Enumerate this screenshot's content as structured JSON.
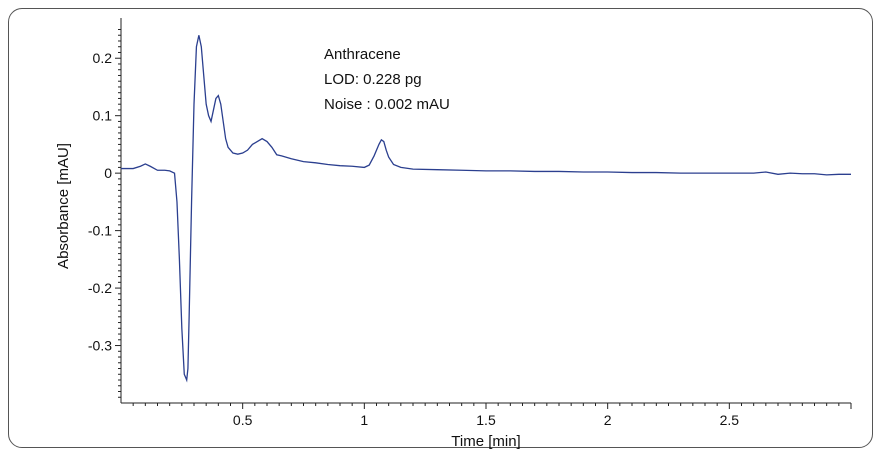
{
  "chart_data": {
    "type": "line",
    "title": "",
    "xlabel": "Time [min]",
    "ylabel": "Absorbance [mAU]",
    "xlim": [
      0,
      3.0
    ],
    "ylim": [
      -0.4,
      0.27
    ],
    "grid": false,
    "x_ticks": [
      0.5,
      1,
      1.5,
      2,
      2.5
    ],
    "x_tick_labels": [
      "0.5",
      "1",
      "1.5",
      "2",
      "2.5"
    ],
    "y_ticks": [
      0.2,
      0.1,
      0,
      -0.1,
      -0.2,
      -0.3
    ],
    "y_tick_labels": [
      "0.2",
      "0.1",
      "0",
      "-0.1",
      "-0.2",
      "-0.3"
    ],
    "annotations": [
      "Anthracene",
      "LOD: 0.228 pg",
      "Noise : 0.002 mAU"
    ],
    "line_color": "#2b3f8f",
    "series": [
      {
        "x": [
          0.0,
          0.05,
          0.08,
          0.1,
          0.12,
          0.15,
          0.18,
          0.2,
          0.22,
          0.23,
          0.24,
          0.25,
          0.26,
          0.27,
          0.275,
          0.28,
          0.29,
          0.3,
          0.31,
          0.32,
          0.33,
          0.34,
          0.35,
          0.36,
          0.37,
          0.38,
          0.39,
          0.4,
          0.41,
          0.42,
          0.43,
          0.44,
          0.45,
          0.46,
          0.48,
          0.5,
          0.52,
          0.54,
          0.56,
          0.58,
          0.6,
          0.62,
          0.64,
          0.66,
          0.7,
          0.75,
          0.8,
          0.85,
          0.9,
          0.95,
          1.0,
          1.02,
          1.04,
          1.06,
          1.07,
          1.08,
          1.09,
          1.1,
          1.12,
          1.15,
          1.2,
          1.3,
          1.4,
          1.5,
          1.6,
          1.7,
          1.8,
          1.9,
          2.0,
          2.1,
          2.2,
          2.3,
          2.4,
          2.5,
          2.6,
          2.65,
          2.7,
          2.75,
          2.8,
          2.85,
          2.9,
          2.95,
          3.0
        ],
        "y": [
          0.008,
          0.008,
          0.012,
          0.016,
          0.012,
          0.005,
          0.005,
          0.004,
          0.0,
          -0.05,
          -0.15,
          -0.27,
          -0.35,
          -0.36,
          -0.34,
          -0.25,
          -0.05,
          0.12,
          0.22,
          0.24,
          0.22,
          0.17,
          0.12,
          0.1,
          0.09,
          0.11,
          0.13,
          0.135,
          0.12,
          0.09,
          0.06,
          0.045,
          0.04,
          0.035,
          0.033,
          0.035,
          0.04,
          0.05,
          0.055,
          0.06,
          0.055,
          0.045,
          0.032,
          0.03,
          0.025,
          0.02,
          0.018,
          0.015,
          0.013,
          0.012,
          0.01,
          0.014,
          0.03,
          0.05,
          0.058,
          0.055,
          0.04,
          0.028,
          0.015,
          0.01,
          0.007,
          0.006,
          0.005,
          0.004,
          0.004,
          0.003,
          0.003,
          0.002,
          0.002,
          0.001,
          0.001,
          0.0,
          0.0,
          0.0,
          0.0,
          0.002,
          -0.002,
          0.0,
          -0.001,
          -0.001,
          -0.003,
          -0.002,
          -0.002
        ]
      }
    ]
  }
}
